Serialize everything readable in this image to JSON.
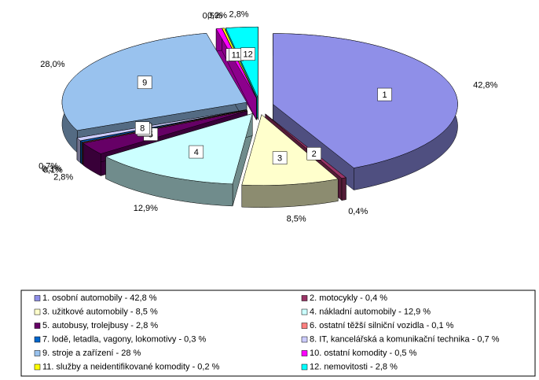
{
  "chart_data": {
    "type": "pie",
    "slice_labels": [
      "1",
      "2",
      "3",
      "4",
      "5",
      "6",
      "7",
      "8",
      "9",
      "10",
      "11",
      "12"
    ],
    "values": [
      42.8,
      0.4,
      8.5,
      12.9,
      2.8,
      0.1,
      0.3,
      0.7,
      28.0,
      0.5,
      0.2,
      2.8
    ],
    "value_labels": [
      "42,8%",
      "0,4%",
      "8,5%",
      "12,9%",
      "2,8%",
      "0,1%",
      "0,3%",
      "0,7%",
      "28,0%",
      "0,5%",
      "0,2%",
      "2,8%"
    ],
    "categories": [
      "1. osobní automobily - 42,8 %",
      "2. motocykly - 0,4 %",
      "3. užitkové automobily - 8,5 %",
      "4. nákladní automobily - 12,9 %",
      "5. autobusy, trolejbusy - 2,8 %",
      "6. ostatní těžší silniční vozidla - 0,1 %",
      "7. lodě, letadla, vagony, lokomotivy - 0,3 %",
      "8. IT, kancelářská a komunikační technika - 0,7 %",
      "9. stroje a zařízení - 28 %",
      "10. ostatní komodity - 0,5 %",
      "11. služby a neidentifikované komodity - 0,2 %",
      "12. nemovitosti - 2,8 %"
    ],
    "colors": [
      "#8f8fe8",
      "#993366",
      "#ffffcc",
      "#ccffff",
      "#660066",
      "#ff8080",
      "#0066cc",
      "#ccccff",
      "#99c2ee",
      "#ff00ff",
      "#ffff00",
      "#00ffff"
    ]
  }
}
